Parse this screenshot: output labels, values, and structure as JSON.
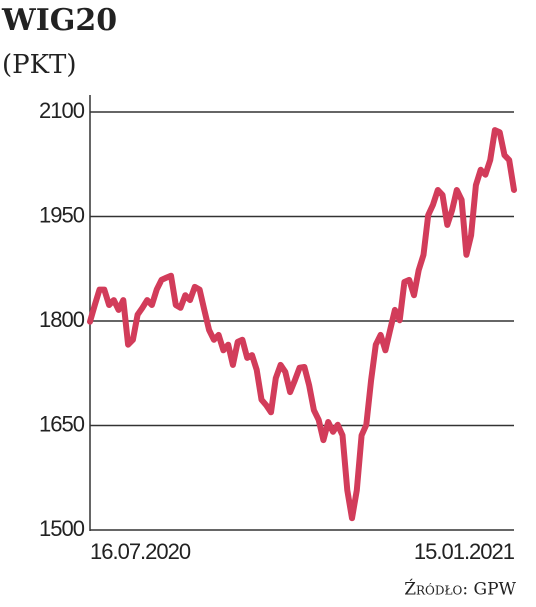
{
  "chart_data": {
    "type": "line",
    "title": "WIG20",
    "subtitle": "(PKT)",
    "source": "Źródło: GPW",
    "categories": [
      "16.07.2020",
      null,
      null,
      null,
      null,
      null,
      null,
      null,
      null,
      null,
      null,
      null,
      null,
      null,
      null,
      null,
      null,
      null,
      null,
      null,
      null,
      null,
      null,
      null,
      null,
      null,
      null,
      null,
      null,
      null,
      null,
      null,
      null,
      null,
      null,
      null,
      null,
      null,
      null,
      null,
      null,
      null,
      null,
      null,
      null,
      null,
      null,
      null,
      null,
      null,
      null,
      null,
      null,
      null,
      null,
      null,
      null,
      null,
      null,
      null,
      null,
      null,
      null,
      null,
      null,
      null,
      null,
      null,
      null,
      null,
      null,
      null,
      null,
      null,
      null,
      null,
      null,
      null,
      null,
      null,
      null,
      null,
      null,
      null,
      null,
      null,
      null,
      null,
      null,
      "15.01.2021"
    ],
    "values": [
      1799,
      1823,
      1845,
      1845,
      1823,
      1830,
      1816,
      1830,
      1766,
      1773,
      1809,
      1819,
      1830,
      1823,
      1845,
      1859,
      1862,
      1865,
      1823,
      1819,
      1837,
      1830,
      1849,
      1845,
      1816,
      1787,
      1773,
      1780,
      1758,
      1766,
      1737,
      1770,
      1773,
      1747,
      1751,
      1730,
      1687,
      1679,
      1669,
      1718,
      1737,
      1727,
      1698,
      1715,
      1733,
      1734,
      1708,
      1672,
      1658,
      1629,
      1655,
      1641,
      1651,
      1636,
      1557,
      1517,
      1557,
      1636,
      1651,
      1715,
      1766,
      1780,
      1758,
      1787,
      1816,
      1801,
      1856,
      1859,
      1837,
      1873,
      1895,
      1952,
      1967,
      1988,
      1981,
      1938,
      1959,
      1988,
      1974,
      1895,
      1923,
      1995,
      2017,
      2010,
      2031,
      2074,
      2071,
      2038,
      2031,
      1988
    ],
    "color": "#d23c5a",
    "ylim": [
      1500,
      2100
    ],
    "yticks": [
      1500,
      1650,
      1800,
      1950,
      2100
    ],
    "grid": true
  }
}
